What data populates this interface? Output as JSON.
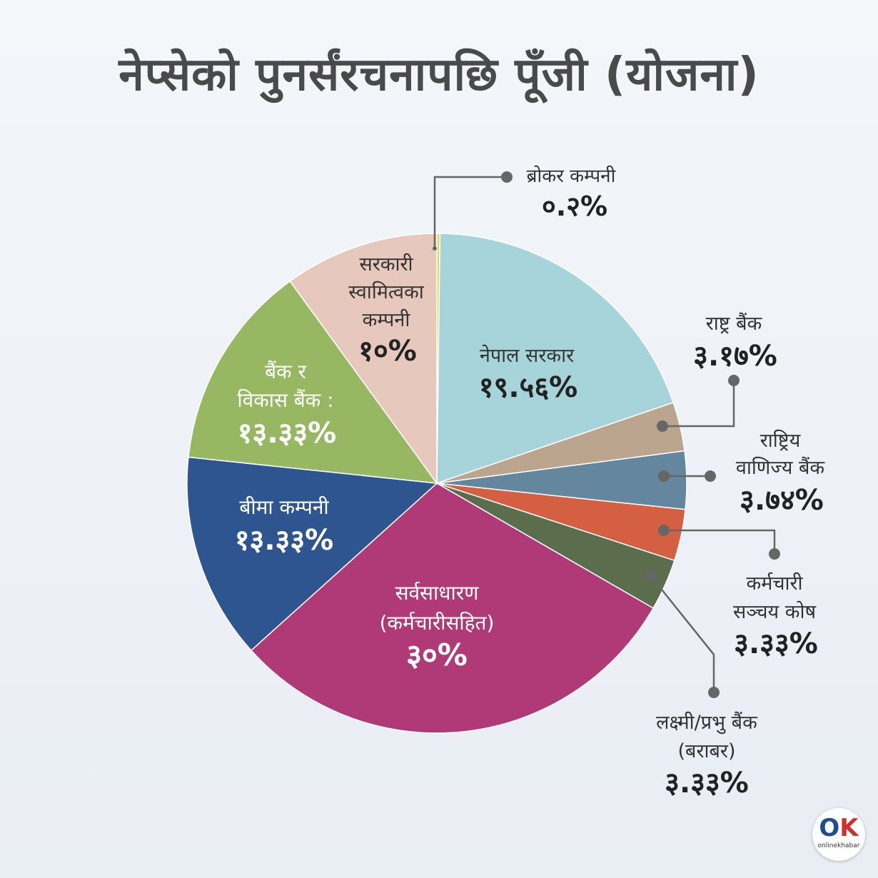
{
  "title": "नेप्सेको पुनर्संरचनापछि पूँजी (योजना)",
  "logo": {
    "mark_o": "O",
    "mark_k": "K",
    "name": "onlinekhabar"
  },
  "chart_data": {
    "type": "pie",
    "title": "नेप्सेको पुनर्संरचनापछि पूँजी (योजना)",
    "start_angle_deg": 0,
    "direction": "clockwise",
    "slices": [
      {
        "name": "ब्रोकर कम्पनी",
        "value": 0.2,
        "value_label": "०.२%",
        "color": "#e8d44d"
      },
      {
        "name": "नेपाल सरकार",
        "value": 19.56,
        "value_label": "१९.५६%",
        "color": "#a6d4da"
      },
      {
        "name": "राष्ट्र बैंक",
        "value": 3.17,
        "value_label": "३.१७%",
        "color": "#bca58e"
      },
      {
        "name": "राष्ट्रिय वाणिज्य बैंक",
        "value": 3.74,
        "value_label": "३.७४%",
        "color": "#64869f"
      },
      {
        "name": "कर्मचारी सञ्चय कोष",
        "value": 3.33,
        "value_label": "३.३३%",
        "color": "#d45f42"
      },
      {
        "name": "लक्ष्मी/प्रभु बैंक (बराबर)",
        "value": 3.33,
        "value_label": "३.३३%",
        "color": "#5b6d4d"
      },
      {
        "name": "सर्वसाधारण (कर्मचारीसहित)",
        "value": 30,
        "value_label": "३०%",
        "color": "#b03a78"
      },
      {
        "name": "बीमा कम्पनी",
        "value": 13.33,
        "value_label": "१३.३३%",
        "color": "#2f5590"
      },
      {
        "name": "बैंक र विकास बैंक :",
        "value": 13.33,
        "value_label": "१३.३३%",
        "color": "#98b763"
      },
      {
        "name": "सरकारी स्वामित्वका कम्पनी",
        "value": 10,
        "value_label": "१०%",
        "color": "#e6c8bc"
      }
    ]
  },
  "labels": {
    "broker": {
      "line1": "ब्रोकर कम्पनी",
      "value": "०.२%"
    },
    "govt": {
      "line1": "नेपाल सरकार",
      "value": "१९.५६%"
    },
    "nrb": {
      "line1": "राष्ट्र बैंक",
      "value": "३.१७%"
    },
    "rbb": {
      "line1": "राष्ट्रिय",
      "line2": "वाणिज्य बैंक",
      "value": "३.७४%"
    },
    "epf": {
      "line1": "कर्मचारी",
      "line2": "सञ्चय कोष",
      "value": "३.३३%"
    },
    "laxmi": {
      "line1": "लक्ष्मी/प्रभु बैंक",
      "line2": "(बराबर)",
      "value": "३.३३%"
    },
    "public": {
      "line1": "सर्वसाधारण",
      "line2": "(कर्मचारीसहित)",
      "value": "३०%"
    },
    "insurance": {
      "line1": "बीमा कम्पनी",
      "value": "१३.३३%"
    },
    "banks": {
      "line1": "बैंक र",
      "line2": "विकास बैंक :",
      "value": "१३.३३%"
    },
    "soe": {
      "line1": "सरकारी",
      "line2": "स्वामित्वका",
      "line3": "कम्पनी",
      "value": "१०%"
    }
  }
}
